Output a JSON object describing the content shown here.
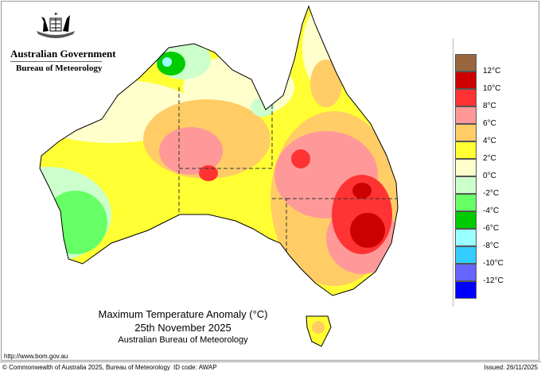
{
  "header": {
    "org": "Australian Government",
    "agency": "Bureau of Meteorology"
  },
  "title": {
    "line1": "Maximum Temperature Anomaly (°C)",
    "line2": "25th November 2025",
    "line3": "Australian Bureau of Meteorology"
  },
  "footer": {
    "url": "http://www.bom.gov.au",
    "copyright": "© Commonwealth of Australia 2025, Bureau of Meteorology",
    "id_code": "ID code: AWAP",
    "issued": "Issued: 26/11/2025"
  },
  "legend": {
    "colors": [
      "#99663d",
      "#cc0000",
      "#ff3333",
      "#ff9999",
      "#ffcc66",
      "#ffff33",
      "#ffffcc",
      "#ccffcc",
      "#66ff66",
      "#00cc00",
      "#99ffff",
      "#33ccff",
      "#6666ff",
      "#0000ff"
    ],
    "labels": [
      "12°C",
      "10°C",
      "8°C",
      "6°C",
      "4°C",
      "2°C",
      "0°C",
      "-2°C",
      "-4°C",
      "-6°C",
      "-8°C",
      "-10°C",
      "-12°C"
    ]
  }
}
